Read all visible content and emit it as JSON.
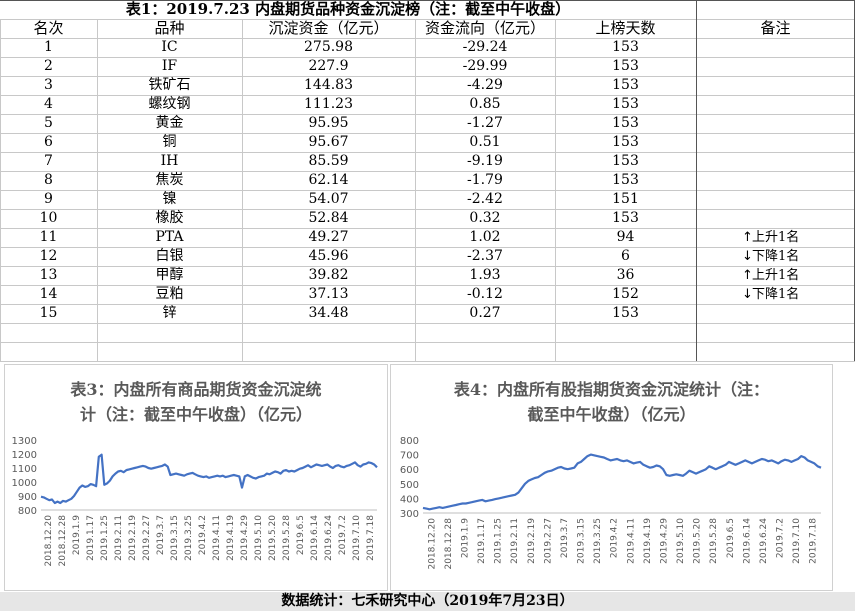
{
  "table1": {
    "title": "表1：2019.7.23 内盘期货品种资金沉淀榜（注：截至中午收盘）",
    "headers": [
      "名次",
      "品种",
      "沉淀资金（亿元）",
      "资金流向（亿元）",
      "上榜天数",
      "备注"
    ],
    "rows": [
      [
        "1",
        "IC",
        "275.98",
        "-29.24",
        "153",
        ""
      ],
      [
        "2",
        "IF",
        "227.9",
        "-29.99",
        "153",
        ""
      ],
      [
        "3",
        "铁矿石",
        "144.83",
        "-4.29",
        "153",
        ""
      ],
      [
        "4",
        "螺纹钢",
        "111.23",
        "0.85",
        "153",
        ""
      ],
      [
        "5",
        "黄金",
        "95.95",
        "-1.27",
        "153",
        ""
      ],
      [
        "6",
        "铜",
        "95.67",
        "0.51",
        "153",
        ""
      ],
      [
        "7",
        "IH",
        "85.59",
        "-9.19",
        "153",
        ""
      ],
      [
        "8",
        "焦炭",
        "62.14",
        "-1.79",
        "153",
        ""
      ],
      [
        "9",
        "镍",
        "54.07",
        "-2.42",
        "151",
        ""
      ],
      [
        "10",
        "橡胶",
        "52.84",
        "0.32",
        "153",
        ""
      ],
      [
        "11",
        "PTA",
        "49.27",
        "1.02",
        "94",
        "上升1名"
      ],
      [
        "12",
        "白银",
        "45.96",
        "-2.37",
        "6",
        "下降1名"
      ],
      [
        "13",
        "甲醇",
        "39.82",
        "1.93",
        "36",
        "上升1名"
      ],
      [
        "14",
        "豆粕",
        "37.13",
        "-0.12",
        "152",
        "下降1名"
      ],
      [
        "15",
        "锌",
        "34.48",
        "0.27",
        "153",
        ""
      ]
    ],
    "note_arrows": {
      "上升1名": "↑",
      "下降1名": "↓"
    }
  },
  "chart_data": [
    {
      "type": "line",
      "title": "表3：内盘所有商品期货资金沉淀统计（注：截至中午收盘）（亿元）",
      "title_lines": [
        "表3：内盘所有商品期货资金沉淀统",
        "计（注：截至中午收盘）（亿元）"
      ],
      "ylim": [
        800,
        1300
      ],
      "yticks": [
        800,
        900,
        1000,
        1100,
        1200,
        1300
      ],
      "xticks": [
        "2018.12.20",
        "2018.12.28",
        "2019.1.9",
        "2019.1.17",
        "2019.1.25",
        "2019.2.11",
        "2019.2.19",
        "2019.2.27",
        "2019.3.7",
        "2019.3.15",
        "2019.3.25",
        "2019.4.2",
        "2019.4.11",
        "2019.4.19",
        "2019.4.29",
        "2019.5.10",
        "2019.5.20",
        "2019.5.28",
        "2019.6.5",
        "2019.6.14",
        "2019.6.24",
        "2019.7.2",
        "2019.7.10",
        "2019.7.18"
      ],
      "color": "#4472c4",
      "series": [
        {
          "values": [
            895,
            890,
            880,
            870,
            875,
            850,
            860,
            850,
            865,
            860,
            870,
            880,
            900,
            930,
            960,
            975,
            965,
            970,
            985,
            980,
            970,
            1180,
            1195,
            980,
            990,
            1010,
            1040,
            1060,
            1075,
            1080,
            1070,
            1085,
            1090,
            1095,
            1100,
            1105,
            1110,
            1115,
            1110,
            1100,
            1095,
            1100,
            1105,
            1110,
            1115,
            1125,
            1110,
            1050,
            1055,
            1060,
            1055,
            1050,
            1045,
            1055,
            1060,
            1065,
            1055,
            1045,
            1040,
            1035,
            1040,
            1030,
            1035,
            1040,
            1045,
            1040,
            1045,
            1035,
            1040,
            1045,
            1050,
            1045,
            1040,
            960,
            1040,
            1050,
            1040,
            1030,
            1025,
            1035,
            1040,
            1045,
            1060,
            1055,
            1065,
            1075,
            1070,
            1060,
            1080,
            1085,
            1075,
            1080,
            1075,
            1085,
            1095,
            1100,
            1110,
            1120,
            1105,
            1115,
            1125,
            1120,
            1115,
            1120,
            1125,
            1110,
            1100,
            1115,
            1120,
            1110,
            1105,
            1115,
            1120,
            1130,
            1140,
            1120,
            1110,
            1125,
            1130,
            1140,
            1135,
            1125,
            1105
          ]
        }
      ]
    },
    {
      "type": "line",
      "title": "表4：内盘所有股指期货资金沉淀统计（注：截至中午收盘）（亿元）",
      "title_lines": [
        "表4：内盘所有股指期货资金沉淀统计（注：",
        "截至中午收盘）（亿元）"
      ],
      "ylim": [
        300,
        800
      ],
      "yticks": [
        300,
        400,
        500,
        600,
        700,
        800
      ],
      "xticks": [
        "2018.12.20",
        "2018.12.28",
        "2019.1.9",
        "2019.1.17",
        "2019.1.25",
        "2019.2.11",
        "2019.2.19",
        "2019.2.27",
        "2019.3.7",
        "2019.3.15",
        "2019.3.25",
        "2019.4.2",
        "2019.4.11",
        "2019.4.19",
        "2019.4.29",
        "2019.5.10",
        "2019.5.20",
        "2019.5.28",
        "2019.6.5",
        "2019.6.14",
        "2019.6.24",
        "2019.7.2",
        "2019.7.10",
        "2019.7.18"
      ],
      "color": "#4472c4",
      "series": [
        {
          "values": [
            335,
            330,
            325,
            330,
            335,
            340,
            335,
            340,
            345,
            350,
            355,
            360,
            365,
            365,
            370,
            375,
            380,
            385,
            390,
            380,
            385,
            390,
            395,
            400,
            405,
            410,
            415,
            420,
            425,
            440,
            470,
            500,
            520,
            530,
            540,
            545,
            560,
            575,
            585,
            590,
            600,
            610,
            615,
            605,
            600,
            605,
            610,
            640,
            650,
            670,
            690,
            700,
            695,
            690,
            685,
            680,
            670,
            660,
            665,
            670,
            660,
            655,
            660,
            650,
            640,
            645,
            650,
            630,
            620,
            610,
            615,
            625,
            620,
            600,
            560,
            555,
            560,
            565,
            560,
            555,
            570,
            590,
            580,
            570,
            580,
            590,
            600,
            620,
            610,
            600,
            610,
            620,
            630,
            650,
            640,
            630,
            640,
            650,
            660,
            650,
            640,
            650,
            660,
            670,
            665,
            655,
            660,
            650,
            640,
            655,
            665,
            660,
            650,
            660,
            670,
            690,
            680,
            660,
            650,
            640,
            620,
            610
          ]
        }
      ]
    }
  ],
  "footer": "数据统计：七禾研究中心（2019年7月23日）"
}
